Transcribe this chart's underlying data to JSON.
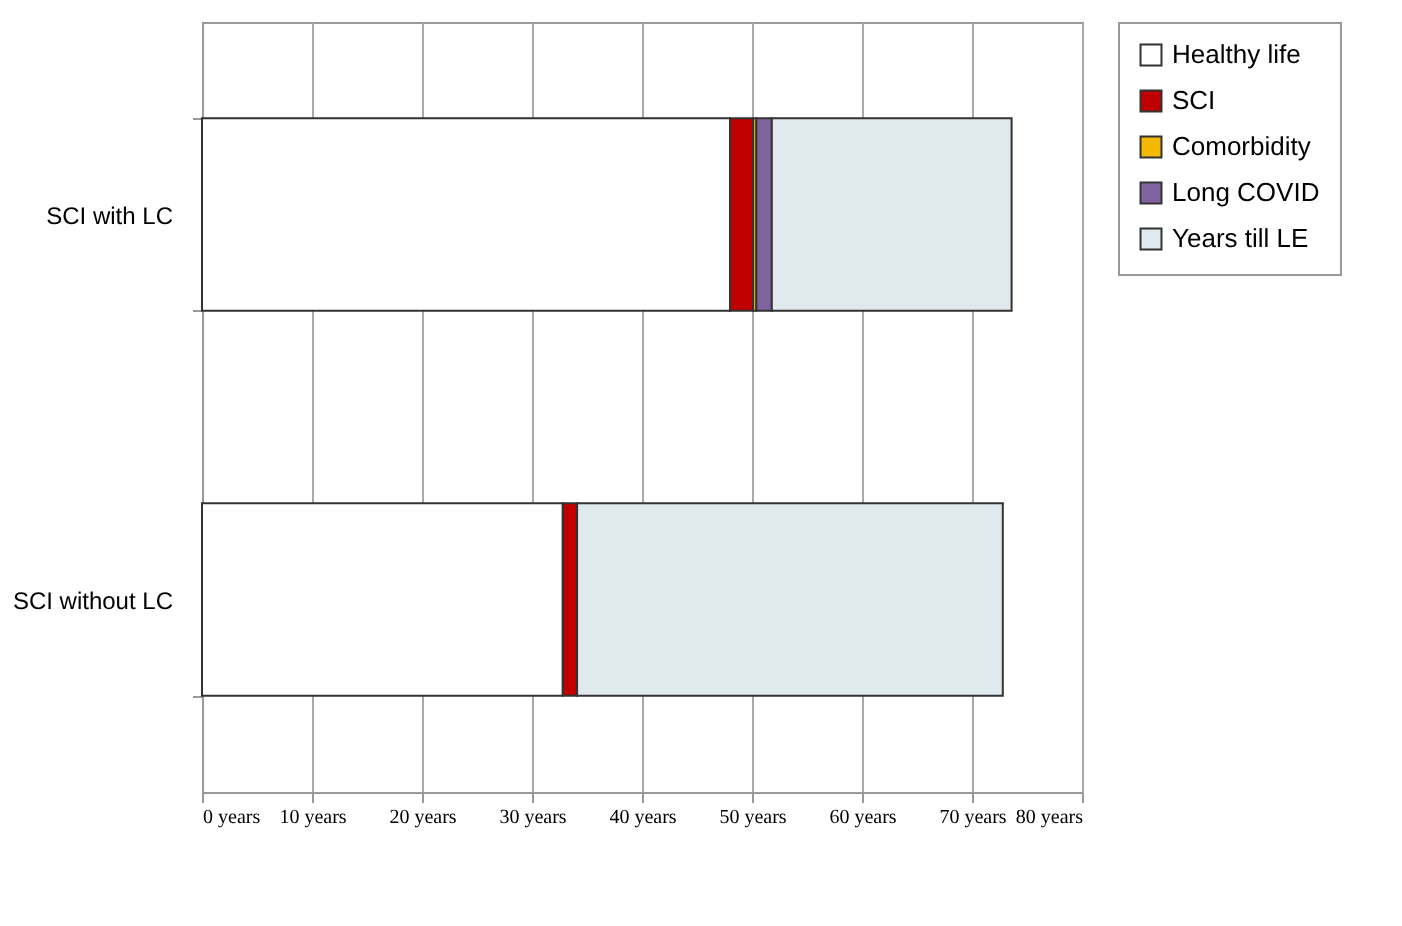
{
  "chart_data": {
    "type": "bar",
    "orientation": "horizontal",
    "stacked": true,
    "categories": [
      "SCI with LC",
      "SCI without LC"
    ],
    "series": [
      {
        "name": "Healthy life",
        "color": "#ffffff",
        "values": [
          48.0,
          32.8
        ]
      },
      {
        "name": "SCI",
        "color": "#c00000",
        "values": [
          2.1,
          1.3
        ]
      },
      {
        "name": "Comorbidity",
        "color": "#f5b800",
        "values": [
          0.3,
          0
        ]
      },
      {
        "name": "Long COVID",
        "color": "#8064a2",
        "values": [
          1.4,
          0
        ]
      },
      {
        "name": "Years till LE",
        "color": "#dfe9ee",
        "values": [
          21.8,
          38.7
        ]
      }
    ],
    "xlim": [
      0,
      80
    ],
    "xticks": [
      {
        "value": 0,
        "label": "0 years"
      },
      {
        "value": 10,
        "label": "10 years"
      },
      {
        "value": 20,
        "label": "20 years"
      },
      {
        "value": 30,
        "label": "30 years"
      },
      {
        "value": 40,
        "label": "40 years"
      },
      {
        "value": 50,
        "label": "50 years"
      },
      {
        "value": 60,
        "label": "60 years"
      },
      {
        "value": 70,
        "label": "70 years"
      },
      {
        "value": 80,
        "label": "80 years"
      }
    ],
    "grid": "x",
    "legend": "right"
  }
}
